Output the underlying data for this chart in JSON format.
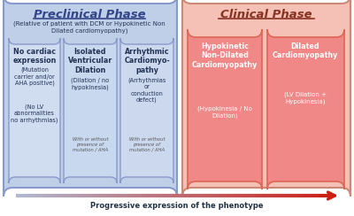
{
  "preclinical_title": "Preclinical Phase",
  "clinical_title": "Clinical Phase",
  "preclinical_subtitle": "(Relative of patient with DCM or Hypokinetic Non\nDilated cardiomyopathy)",
  "preclinical_bg": "#c0cfe8",
  "clinical_bg": "#f5c0b5",
  "box1_bg": "#d0dcf0",
  "box2_bg": "#c8d8ee",
  "box3_bg": "#ccd8ee",
  "box4_bg": "#f08888",
  "box5_bg": "#f08888",
  "box1_title": "No cardiac\nexpression",
  "box1_sub1": "(Mutation\ncarrier and/or\nAHA positive)",
  "box1_sub2": "(No LV\nabnormalities\nno arrhythmias)",
  "box2_title": "Isolated\nVentricular\nDilation",
  "box2_sub1": "(Dilation / no\nhypokinesia)",
  "box2_sub2": "With or without\npresence of\nmutation / AHA",
  "box3_title": "Arrhythmic\nCardiomyo-\npathy",
  "box3_sub1": "(Arrhythmias\nor\nconduction\ndefect)",
  "box3_sub2": "With or without\npresence of\nmutation / AHA",
  "box4_title": "Hypokinetic\nNon-Dilated\nCardiomyopathy",
  "box4_sub1": "(Hypokinesia / No\nDilation)",
  "box5_title": "Dilated\nCardiomyopathy",
  "box5_sub1": "(LV Dilation +\nHypokinesia)",
  "arrow_label": "Progressive expression of the phenotype",
  "title_color_pre": "#334488",
  "title_color_cli": "#883322",
  "text_dark": "#223355",
  "text_small": "#555555",
  "box_text_white": "#ffffff"
}
